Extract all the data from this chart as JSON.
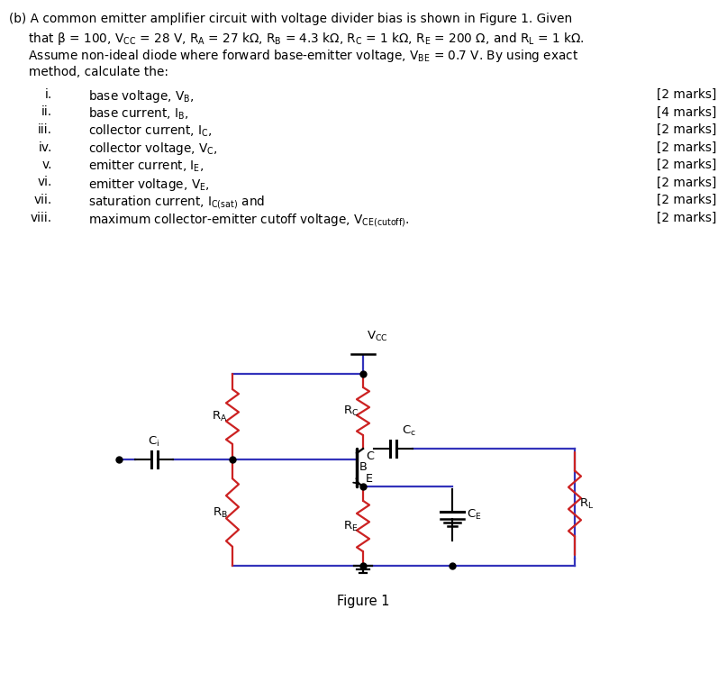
{
  "bg_color": "#ffffff",
  "text_color": "#000000",
  "blue_color": "#3333bb",
  "red_color": "#cc2222",
  "black_color": "#000000",
  "fig_width": 8.07,
  "fig_height": 7.77,
  "para_lines": [
    "(b) A common emitter amplifier circuit with voltage divider bias is shown in Figure 1. Given",
    "     that β = 100, V$_{\\rm CC}$ = 28 V, R$_{\\rm A}$ = 27 kΩ, R$_{\\rm B}$ = 4.3 kΩ, R$_{\\rm C}$ = 1 kΩ, R$_{\\rm E}$ = 200 Ω, and R$_{\\rm L}$ = 1 kΩ.",
    "     Assume non-ideal diode where forward base-emitter voltage, V$_{\\rm BE}$ = 0.7 V. By using exact",
    "     method, calculate the:"
  ],
  "list_items": [
    [
      "i.",
      "base voltage, V$_{\\rm B}$,",
      "[2 marks]"
    ],
    [
      "ii.",
      "base current, I$_{\\rm B}$,",
      "[4 marks]"
    ],
    [
      "iii.",
      "collector current, I$_{\\rm C}$,",
      "[2 marks]"
    ],
    [
      "iv.",
      "collector voltage, V$_{\\rm C}$,",
      "[2 marks]"
    ],
    [
      "v.",
      "emitter current, I$_{\\rm E}$,",
      "[2 marks]"
    ],
    [
      "vi.",
      "emitter voltage, V$_{\\rm E}$,",
      "[2 marks]"
    ],
    [
      "vii.",
      "saturation current, I$_{\\rm C(sat)}$ and",
      "[2 marks]"
    ],
    [
      "viii.",
      "maximum collector-emitter cutoff voltage, V$_{\\rm CE(cutoff)}$.",
      "[2 marks]"
    ]
  ],
  "figure_label": "Figure 1",
  "vcc_label": "V$_{\\rm CC}$",
  "ra_label": "R$_{\\rm A}$",
  "rb_label": "R$_{\\rm B}$",
  "rc_label": "R$_{\\rm C}$",
  "re_label": "R$_{\\rm E}$",
  "rl_label": "R$_{\\rm L}$",
  "cc_label": "C$_{\\rm c}$",
  "ci_label": "C$_{\\rm i}$",
  "ce_label": "C$_{\\rm E}$",
  "b_label": "B",
  "c_label": "C",
  "e_label": "E"
}
